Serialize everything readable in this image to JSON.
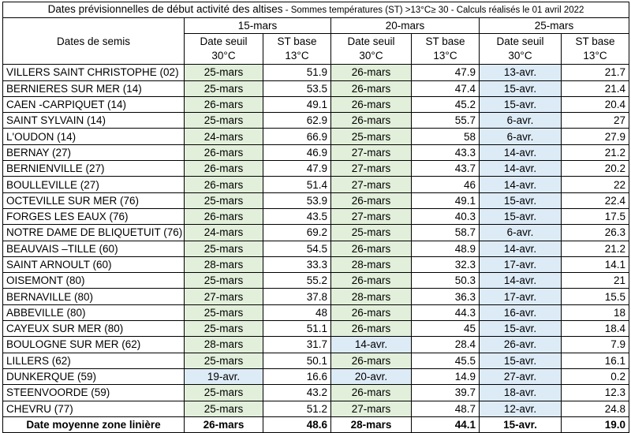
{
  "title": {
    "main": "Dates prévisionnelles de début activité des altises",
    "sub": " - Sommes températures (ST) >13°C≥ 30 - Calculs réalisés le 01 avril 2022"
  },
  "header": {
    "row_label": "Dates de semis",
    "groups": [
      "15-mars",
      "20-mars",
      "25-mars"
    ],
    "col_a_line1": "Date seuil",
    "col_a_line2": "30°C",
    "col_b_line1": "ST base",
    "col_b_line2": "13°C"
  },
  "colors": {
    "green": "#e2efda",
    "blue": "#ddebf7"
  },
  "rows": [
    {
      "site": "VILLERS SAINT CHRISTOPHE (02)",
      "d1": "25-mars",
      "s1": "51.9",
      "d2": "26-mars",
      "s2": "47.9",
      "d3": "13-avr.",
      "s3": "21.7"
    },
    {
      "site": "BERNIERES SUR MER (14)",
      "d1": "25-mars",
      "s1": "53.5",
      "d2": "26-mars",
      "s2": "47.4",
      "d3": "15-avr.",
      "s3": "21.4"
    },
    {
      "site": "CAEN -CARPIQUET (14)",
      "d1": "26-mars",
      "s1": "49.1",
      "d2": "26-mars",
      "s2": "45.2",
      "d3": "15-avr.",
      "s3": "20.4"
    },
    {
      "site": "SAINT SYLVAIN (14)",
      "d1": "25-mars",
      "s1": "62.9",
      "d2": "26-mars",
      "s2": "55.7",
      "d3": "6-avr.",
      "s3": "27"
    },
    {
      "site": "L'OUDON (14)",
      "d1": "24-mars",
      "s1": "66.9",
      "d2": "25-mars",
      "s2": "58",
      "d3": "6-avr.",
      "s3": "27.9"
    },
    {
      "site": "BERNAY (27)",
      "d1": "26-mars",
      "s1": "46.9",
      "d2": "27-mars",
      "s2": "43.3",
      "d3": "14-avr.",
      "s3": "21.2"
    },
    {
      "site": "BERNIENVILLE (27)",
      "d1": "26-mars",
      "s1": "47.9",
      "d2": "27-mars",
      "s2": "43.7",
      "d3": "14-avr.",
      "s3": "20.2"
    },
    {
      "site": "BOULLEVILLE (27)",
      "d1": "26-mars",
      "s1": "51.4",
      "d2": "27-mars",
      "s2": "46",
      "d3": "14-avr.",
      "s3": "22"
    },
    {
      "site": "OCTEVILLE SUR MER (76)",
      "d1": "25-mars",
      "s1": "53.9",
      "d2": "26-mars",
      "s2": "49.1",
      "d3": "15-avr.",
      "s3": "22.4"
    },
    {
      "site": "FORGES LES EAUX (76)",
      "d1": "26-mars",
      "s1": "43.5",
      "d2": "27-mars",
      "s2": "40.3",
      "d3": "15-avr.",
      "s3": "17.5"
    },
    {
      "site": "NOTRE DAME DE BLIQUETUIT (76)",
      "d1": "24-mars",
      "s1": "69.2",
      "d2": "25-mars",
      "s2": "58.7",
      "d3": "6-avr.",
      "s3": "26.3"
    },
    {
      "site": "BEAUVAIS –TILLE (60)",
      "d1": "25-mars",
      "s1": "54.5",
      "d2": "26-mars",
      "s2": "48.9",
      "d3": "14-avr.",
      "s3": "21.2"
    },
    {
      "site": "SAINT ARNOULT (60)",
      "d1": "28-mars",
      "s1": "33.3",
      "d2": "28-mars",
      "s2": "32.3",
      "d3": "17-avr.",
      "s3": "14.1"
    },
    {
      "site": "OISEMONT (80)",
      "d1": "25-mars",
      "s1": "55.2",
      "d2": "26-mars",
      "s2": "50.3",
      "d3": "14-avr.",
      "s3": "21"
    },
    {
      "site": "BERNAVILLE (80)",
      "d1": "27-mars",
      "s1": "37.8",
      "d2": "28-mars",
      "s2": "36.3",
      "d3": "17-avr.",
      "s3": "15.5"
    },
    {
      "site": "ABBEVILLE (80)",
      "d1": "25-mars",
      "s1": "48",
      "d2": "26-mars",
      "s2": "44.3",
      "d3": "16-avr.",
      "s3": "18"
    },
    {
      "site": "CAYEUX SUR MER (80)",
      "d1": "25-mars",
      "s1": "51.1",
      "d2": "26-mars",
      "s2": "45",
      "d3": "15-avr.",
      "s3": "18.4"
    },
    {
      "site": "BOULOGNE SUR MER (62)",
      "d1": "28-mars",
      "s1": "31.7",
      "d2": "14-avr.",
      "s2": "28.4",
      "d3": "26-avr.",
      "s3": "7.9"
    },
    {
      "site": "LILLERS (62)",
      "d1": "25-mars",
      "s1": "50.1",
      "d2": "26-mars",
      "s2": "45.5",
      "d3": "15-avr.",
      "s3": "16.1"
    },
    {
      "site": "DUNKERQUE (59)",
      "d1": "19-avr.",
      "s1": "16.6",
      "d2": "20-avr.",
      "s2": "14.9",
      "d3": "27-avr.",
      "s3": "0.2"
    },
    {
      "site": "STEENVOORDE (59)",
      "d1": "25-mars",
      "s1": "43.2",
      "d2": "26-mars",
      "s2": "39.7",
      "d3": "18-avr.",
      "s3": "12.3"
    },
    {
      "site": "CHEVRU (77)",
      "d1": "25-mars",
      "s1": "51.2",
      "d2": "27-mars",
      "s2": "48.7",
      "d3": "12-avr.",
      "s3": "24.8"
    }
  ],
  "footer": {
    "label": "Date moyenne zone linière",
    "d1": "26-mars",
    "s1": "48.6",
    "d2": "28-mars",
    "s2": "44.1",
    "d3": "15-avr.",
    "s3": "19.0"
  }
}
